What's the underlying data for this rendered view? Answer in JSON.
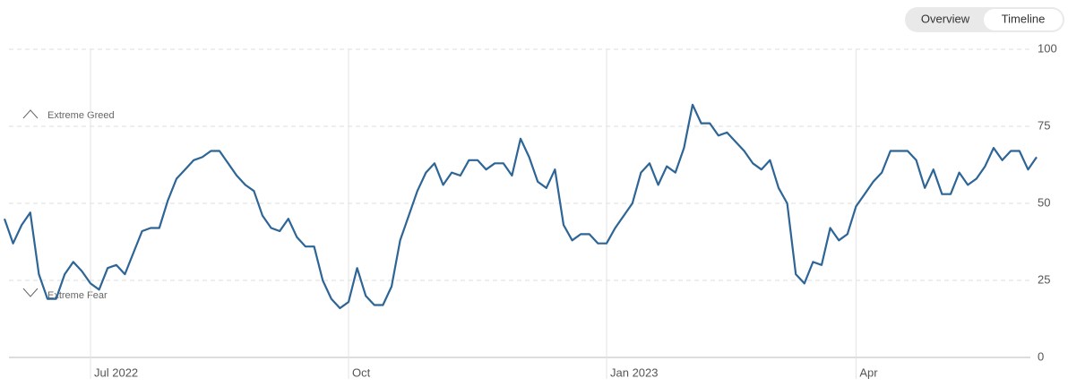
{
  "controls": {
    "options": [
      "Overview",
      "Timeline"
    ],
    "selected": "Timeline"
  },
  "chart_data": {
    "type": "line",
    "annotations": [
      "Extreme Greed",
      "Extreme Fear"
    ],
    "categories": [
      null,
      null,
      null,
      null,
      null,
      null,
      null,
      null,
      null,
      null,
      "Jul 2022",
      null,
      null,
      null,
      null,
      null,
      null,
      null,
      null,
      null,
      null,
      null,
      null,
      null,
      null,
      null,
      null,
      null,
      null,
      null,
      null,
      null,
      null,
      null,
      null,
      null,
      null,
      null,
      null,
      null,
      "Oct",
      null,
      null,
      null,
      null,
      null,
      null,
      null,
      null,
      null,
      null,
      null,
      null,
      null,
      null,
      null,
      null,
      null,
      null,
      null,
      null,
      null,
      null,
      null,
      null,
      null,
      null,
      null,
      null,
      null,
      "Jan 2023",
      null,
      null,
      null,
      null,
      null,
      null,
      null,
      null,
      null,
      null,
      null,
      null,
      null,
      null,
      null,
      null,
      null,
      null,
      null,
      null,
      null,
      null,
      null,
      null,
      null,
      null,
      null,
      null,
      "Apr",
      null,
      null,
      null,
      null,
      null,
      null,
      null,
      null,
      null,
      null,
      null,
      null,
      null,
      null,
      null,
      null,
      null,
      null,
      null,
      null,
      null
    ],
    "values": [
      45,
      37,
      43,
      47,
      27,
      19,
      19,
      27,
      31,
      28,
      24,
      22,
      29,
      30,
      27,
      34,
      41,
      42,
      42,
      51,
      58,
      61,
      64,
      65,
      67,
      67,
      63,
      59,
      56,
      54,
      46,
      42,
      41,
      45,
      39,
      36,
      36,
      25,
      19,
      16,
      18,
      29,
      20,
      17,
      17,
      23,
      38,
      46,
      54,
      60,
      63,
      56,
      60,
      59,
      64,
      64,
      61,
      63,
      63,
      59,
      71,
      65,
      57,
      55,
      61,
      43,
      38,
      40,
      40,
      37,
      37,
      42,
      46,
      50,
      60,
      63,
      56,
      62,
      60,
      68,
      82,
      76,
      76,
      72,
      73,
      70,
      67,
      63,
      61,
      64,
      55,
      50,
      27,
      24,
      31,
      30,
      42,
      38,
      40,
      49,
      53,
      57,
      60,
      67,
      67,
      67,
      64,
      55,
      61,
      53,
      53,
      60,
      56,
      58,
      62,
      68,
      64,
      67,
      67,
      61,
      65
    ],
    "color": "#2d6596",
    "ylim": [
      0,
      100
    ],
    "yticks": [
      0,
      25,
      50,
      75,
      100
    ],
    "grid": true
  }
}
